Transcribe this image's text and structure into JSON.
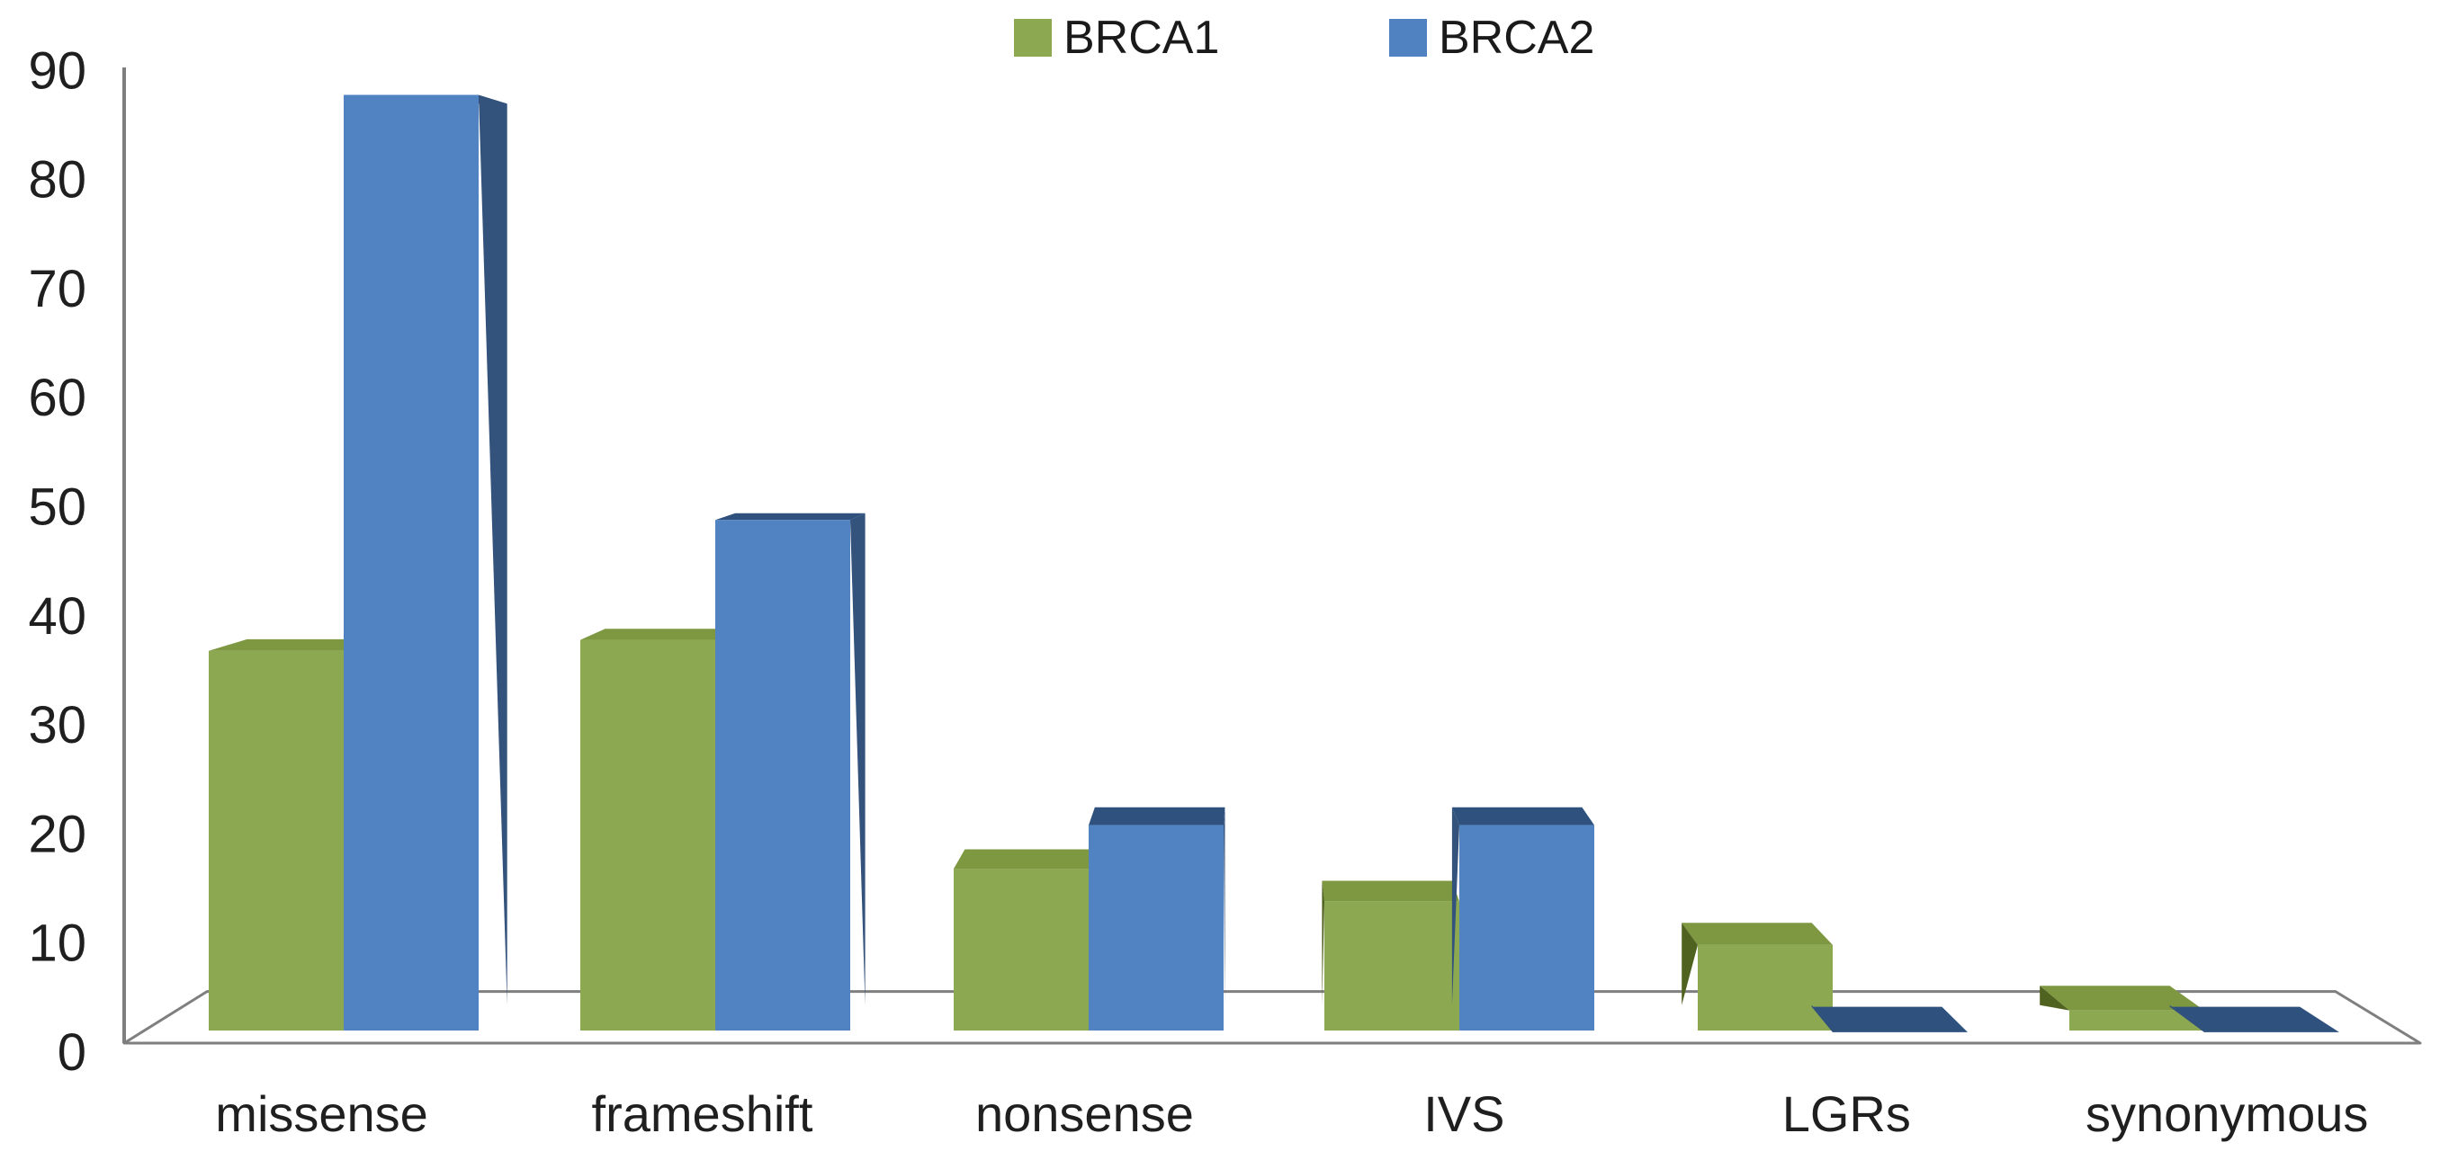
{
  "figure": {
    "background": "#ffffff"
  },
  "legend": {
    "position": "top",
    "items": [
      {
        "label": "BRCA1",
        "color": "#8CA851"
      },
      {
        "label": "BRCA2",
        "color": "#5082C2"
      }
    ]
  },
  "chart_data": {
    "type": "bar",
    "variant": "3d-clustered-column",
    "title": "",
    "categories": [
      "missense",
      "frameshift",
      "nonsense",
      "IVS",
      "LGRs",
      "synonymous"
    ],
    "series": [
      {
        "name": "BRCA1",
        "values": [
          36,
          37,
          16,
          13,
          9,
          3
        ],
        "color_front": "#8CA851",
        "color_top": "#7D9841",
        "color_side": "#50621F"
      },
      {
        "name": "BRCA2",
        "values": [
          87,
          48,
          20,
          20,
          1,
          1
        ],
        "color_front": "#5183C3",
        "color_top": "#2E517E",
        "color_side": "#33527C"
      }
    ],
    "xlabel": "",
    "ylabel": "",
    "ylim": [
      0,
      90
    ],
    "yticks": [
      0,
      10,
      20,
      30,
      40,
      50,
      60,
      70,
      80,
      90
    ],
    "grid": false,
    "legend_position": "top",
    "axis_color": "#7F7F7F",
    "text_color": "#1F1F1F"
  }
}
